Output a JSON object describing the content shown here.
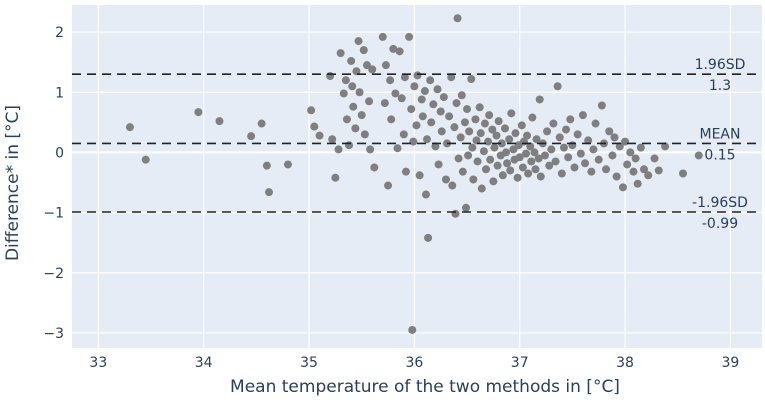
{
  "chart_data": {
    "type": "scatter",
    "title": "",
    "xlabel": "Mean temperature of the two methods in [°C]",
    "ylabel": "Difference* in [°C]",
    "xlim": [
      32.75,
      39.3
    ],
    "ylim": [
      -3.25,
      2.45
    ],
    "x_ticks": [
      33,
      34,
      35,
      36,
      37,
      38,
      39
    ],
    "y_ticks": [
      -3,
      -2,
      -1,
      0,
      1,
      2
    ],
    "grid": true,
    "background_color": "#e5ecf6",
    "marker_color": "#7f7f7f",
    "reference_lines": [
      {
        "label": "1.96SD",
        "value_label": "1.3",
        "y": 1.3
      },
      {
        "label": "MEAN",
        "value_label": "0.15",
        "y": 0.15
      },
      {
        "label": "-1.96SD",
        "value_label": "-0.99",
        "y": -0.99
      }
    ],
    "points": [
      [
        33.3,
        0.42
      ],
      [
        33.45,
        -0.12
      ],
      [
        33.95,
        0.67
      ],
      [
        34.15,
        0.52
      ],
      [
        34.45,
        0.27
      ],
      [
        34.55,
        0.48
      ],
      [
        34.6,
        -0.22
      ],
      [
        34.62,
        -0.66
      ],
      [
        34.8,
        -0.2
      ],
      [
        35.02,
        0.7
      ],
      [
        35.05,
        0.43
      ],
      [
        35.1,
        0.28
      ],
      [
        35.2,
        1.27
      ],
      [
        35.22,
        0.22
      ],
      [
        35.25,
        -0.42
      ],
      [
        35.28,
        0.05
      ],
      [
        35.3,
        1.65
      ],
      [
        35.33,
        0.98
      ],
      [
        35.35,
        1.2
      ],
      [
        35.36,
        0.55
      ],
      [
        35.38,
        0.12
      ],
      [
        35.4,
        1.52
      ],
      [
        35.41,
        1.1
      ],
      [
        35.42,
        0.76
      ],
      [
        35.44,
        0.4
      ],
      [
        35.45,
        1.35
      ],
      [
        35.47,
        1.85
      ],
      [
        35.48,
        1.0
      ],
      [
        35.5,
        0.62
      ],
      [
        35.52,
        1.7
      ],
      [
        35.53,
        0.3
      ],
      [
        35.55,
        1.45
      ],
      [
        35.57,
        0.85
      ],
      [
        35.58,
        0.05
      ],
      [
        35.6,
        1.38
      ],
      [
        35.62,
        -0.25
      ],
      [
        35.7,
        1.92
      ],
      [
        35.72,
        0.82
      ],
      [
        35.73,
        1.45
      ],
      [
        35.75,
        -0.55
      ],
      [
        35.77,
        1.2
      ],
      [
        35.78,
        0.55
      ],
      [
        35.8,
        1.72
      ],
      [
        35.82,
        0.98
      ],
      [
        35.84,
        0.07
      ],
      [
        35.86,
        1.68
      ],
      [
        35.88,
        0.9
      ],
      [
        35.9,
        0.3
      ],
      [
        35.91,
        1.25
      ],
      [
        35.92,
        -0.32
      ],
      [
        35.95,
        1.92
      ],
      [
        35.97,
        0.72
      ],
      [
        35.98,
        -2.95
      ],
      [
        35.99,
        0.18
      ],
      [
        36.0,
        1.1
      ],
      [
        36.02,
        0.45
      ],
      [
        36.03,
        1.28
      ],
      [
        36.05,
        -0.38
      ],
      [
        36.07,
        0.88
      ],
      [
        36.08,
        0.6
      ],
      [
        36.1,
        1.02
      ],
      [
        36.11,
        -0.7
      ],
      [
        36.12,
        0.22
      ],
      [
        36.13,
        -1.42
      ],
      [
        36.15,
        1.2
      ],
      [
        36.16,
        0.5
      ],
      [
        36.18,
        0.8
      ],
      [
        36.2,
        0.1
      ],
      [
        36.22,
        1.05
      ],
      [
        36.23,
        -0.2
      ],
      [
        36.25,
        0.68
      ],
      [
        36.26,
        0.35
      ],
      [
        36.28,
        0.92
      ],
      [
        36.3,
        -0.45
      ],
      [
        36.31,
        0.15
      ],
      [
        36.33,
        0.6
      ],
      [
        36.35,
        1.25
      ],
      [
        36.36,
        -0.55
      ],
      [
        36.38,
        0.42
      ],
      [
        36.39,
        -1.02
      ],
      [
        36.4,
        0.82
      ],
      [
        36.41,
        2.23
      ],
      [
        36.42,
        -0.1
      ],
      [
        36.44,
        0.25
      ],
      [
        36.45,
        0.95
      ],
      [
        36.46,
        -0.32
      ],
      [
        36.48,
        0.5
      ],
      [
        36.49,
        -0.92
      ],
      [
        36.5,
        0.72
      ],
      [
        36.51,
        -0.05
      ],
      [
        36.52,
        0.35
      ],
      [
        36.54,
        1.22
      ],
      [
        36.55,
        0.08
      ],
      [
        36.56,
        -0.45
      ],
      [
        36.58,
        0.55
      ],
      [
        36.59,
        0.2
      ],
      [
        36.6,
        -0.15
      ],
      [
        36.62,
        0.75
      ],
      [
        36.63,
        0.32
      ],
      [
        36.64,
        -0.6
      ],
      [
        36.66,
        0.02
      ],
      [
        36.67,
        0.48
      ],
      [
        36.68,
        -0.28
      ],
      [
        36.7,
        0.18
      ],
      [
        36.71,
        0.62
      ],
      [
        36.72,
        -0.12
      ],
      [
        36.74,
        0.38
      ],
      [
        36.75,
        -0.48
      ],
      [
        36.76,
        0.08
      ],
      [
        36.78,
        0.28
      ],
      [
        36.79,
        -0.22
      ],
      [
        36.8,
        0.52
      ],
      [
        36.82,
        -0.05
      ],
      [
        36.83,
        0.15
      ],
      [
        36.84,
        -0.38
      ],
      [
        36.86,
        0.4
      ],
      [
        36.87,
        0.0
      ],
      [
        36.88,
        -0.18
      ],
      [
        36.9,
        0.22
      ],
      [
        36.91,
        -0.3
      ],
      [
        36.92,
        0.65
      ],
      [
        36.94,
        0.05
      ],
      [
        36.95,
        -0.12
      ],
      [
        36.96,
        0.32
      ],
      [
        36.98,
        -0.42
      ],
      [
        36.99,
        0.12
      ],
      [
        37.0,
        -0.08
      ],
      [
        37.02,
        0.45
      ],
      [
        37.03,
        -0.25
      ],
      [
        37.04,
        0.18
      ],
      [
        37.06,
        -0.02
      ],
      [
        37.07,
        0.28
      ],
      [
        37.08,
        -0.35
      ],
      [
        37.1,
        0.1
      ],
      [
        37.11,
        -0.15
      ],
      [
        37.12,
        0.58
      ],
      [
        37.14,
        0.0
      ],
      [
        37.15,
        -0.28
      ],
      [
        37.16,
        0.22
      ],
      [
        37.18,
        -0.1
      ],
      [
        37.19,
        0.88
      ],
      [
        37.2,
        -0.4
      ],
      [
        37.22,
        0.15
      ],
      [
        37.24,
        -0.05
      ],
      [
        37.26,
        0.35
      ],
      [
        37.28,
        -0.22
      ],
      [
        37.3,
        0.05
      ],
      [
        37.32,
        0.48
      ],
      [
        37.34,
        -0.15
      ],
      [
        37.36,
        1.1
      ],
      [
        37.38,
        0.25
      ],
      [
        37.4,
        -0.35
      ],
      [
        37.42,
        0.08
      ],
      [
        37.44,
        0.38
      ],
      [
        37.46,
        -0.08
      ],
      [
        37.48,
        0.55
      ],
      [
        37.5,
        0.12
      ],
      [
        37.52,
        -0.25
      ],
      [
        37.55,
        0.3
      ],
      [
        37.58,
        -0.02
      ],
      [
        37.6,
        0.62
      ],
      [
        37.62,
        -0.18
      ],
      [
        37.65,
        0.2
      ],
      [
        37.68,
        -0.32
      ],
      [
        37.7,
        0.05
      ],
      [
        37.72,
        0.48
      ],
      [
        37.75,
        -0.12
      ],
      [
        37.78,
        0.78
      ],
      [
        37.8,
        0.15
      ],
      [
        37.82,
        -0.28
      ],
      [
        37.85,
        0.35
      ],
      [
        37.88,
        -0.05
      ],
      [
        37.9,
        0.25
      ],
      [
        37.92,
        -0.4
      ],
      [
        37.95,
        0.1
      ],
      [
        37.98,
        -0.58
      ],
      [
        38.0,
        0.18
      ],
      [
        38.02,
        -0.2
      ],
      [
        38.05,
        0.0
      ],
      [
        38.08,
        -0.32
      ],
      [
        38.1,
        -0.1
      ],
      [
        38.12,
        -0.52
      ],
      [
        38.15,
        0.08
      ],
      [
        38.18,
        -0.28
      ],
      [
        38.22,
        -0.38
      ],
      [
        38.28,
        -0.1
      ],
      [
        38.32,
        -0.3
      ],
      [
        38.38,
        0.1
      ],
      [
        38.55,
        -0.35
      ],
      [
        38.7,
        -0.05
      ]
    ]
  }
}
